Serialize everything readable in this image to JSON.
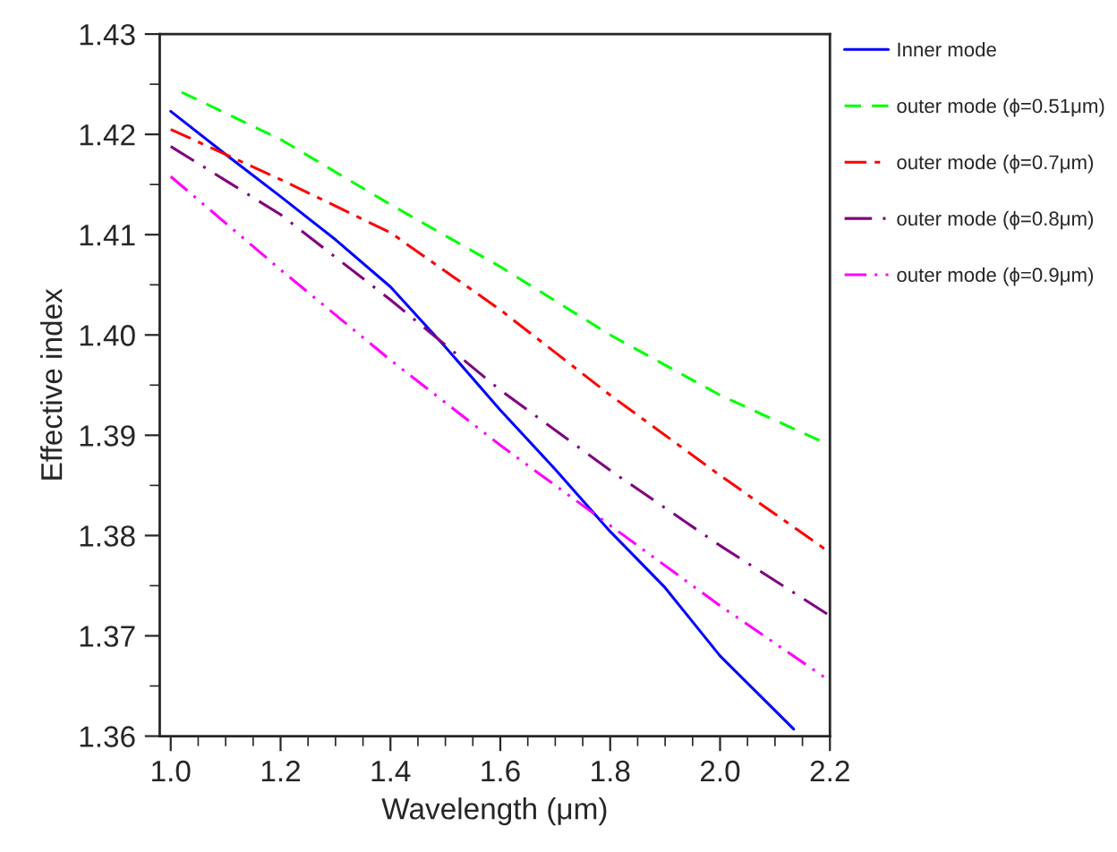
{
  "chart_data": {
    "type": "line",
    "xlabel": "Wavelength (μm)",
    "ylabel": "Effective index",
    "xlim": [
      0.98,
      2.2
    ],
    "xticks": [
      {
        "value": 1.0,
        "label": "1.0"
      },
      {
        "value": 1.2,
        "label": "1.2"
      },
      {
        "value": 1.4,
        "label": "1.4"
      },
      {
        "value": 1.6,
        "label": "1.6"
      },
      {
        "value": 1.8,
        "label": "1.8"
      },
      {
        "value": 2.0,
        "label": "2.0"
      },
      {
        "value": 2.2,
        "label": "2.2"
      }
    ],
    "ylim": [
      1.36,
      1.43
    ],
    "yticks": [
      {
        "value": 1.36,
        "label": "1.36"
      },
      {
        "value": 1.37,
        "label": "1.37"
      },
      {
        "value": 1.38,
        "label": "1.38"
      },
      {
        "value": 1.39,
        "label": "1.39"
      },
      {
        "value": 1.4,
        "label": "1.40"
      },
      {
        "value": 1.41,
        "label": "1.41"
      },
      {
        "value": 1.42,
        "label": "1.42"
      },
      {
        "value": 1.43,
        "label": "1.43"
      }
    ],
    "grid": false,
    "legend": "right",
    "marker": "none",
    "series": [
      {
        "name": "Inner mode",
        "color": "#0000ff",
        "line_style": "solid",
        "x": [
          1.0,
          1.1,
          1.2,
          1.3,
          1.4,
          1.5,
          1.6,
          1.7,
          1.8,
          1.9,
          2.0,
          2.134
        ],
        "values": [
          1.4223,
          1.418,
          1.4138,
          1.4095,
          1.4048,
          1.3988,
          1.3925,
          1.3866,
          1.3804,
          1.3748,
          1.368,
          1.3607
        ]
      },
      {
        "name": "outer mode (ϕ=0.51μm)",
        "color": "#00ff00",
        "line_style": "dashed",
        "x": [
          1.02,
          1.2,
          1.4,
          1.6,
          1.8,
          2.0,
          2.2
        ],
        "values": [
          1.4242,
          1.4195,
          1.413,
          1.4068,
          1.4,
          1.394,
          1.389
        ]
      },
      {
        "name": "outer mode (ϕ=0.7μm)",
        "color": "#ff0000",
        "line_style": "dashdot",
        "x": [
          1.0,
          1.2,
          1.4,
          1.6,
          1.8,
          2.0,
          2.2
        ],
        "values": [
          1.4205,
          1.4155,
          1.4102,
          1.4025,
          1.394,
          1.386,
          1.3783
        ]
      },
      {
        "name": "outer mode (ϕ=0.8μm)",
        "color": "#800080",
        "line_style": "longdashdot",
        "x": [
          1.0,
          1.2,
          1.4,
          1.6,
          1.8,
          2.0,
          2.2
        ],
        "values": [
          1.4188,
          1.412,
          1.4035,
          1.3945,
          1.3865,
          1.379,
          1.372
        ]
      },
      {
        "name": "outer mode (ϕ=0.9μm)",
        "color": "#ff00ff",
        "line_style": "dashdotdot",
        "x": [
          1.0,
          1.2,
          1.4,
          1.6,
          1.8,
          2.0,
          2.2
        ],
        "values": [
          1.4158,
          1.4065,
          1.3975,
          1.389,
          1.381,
          1.373,
          1.3655
        ]
      }
    ]
  }
}
